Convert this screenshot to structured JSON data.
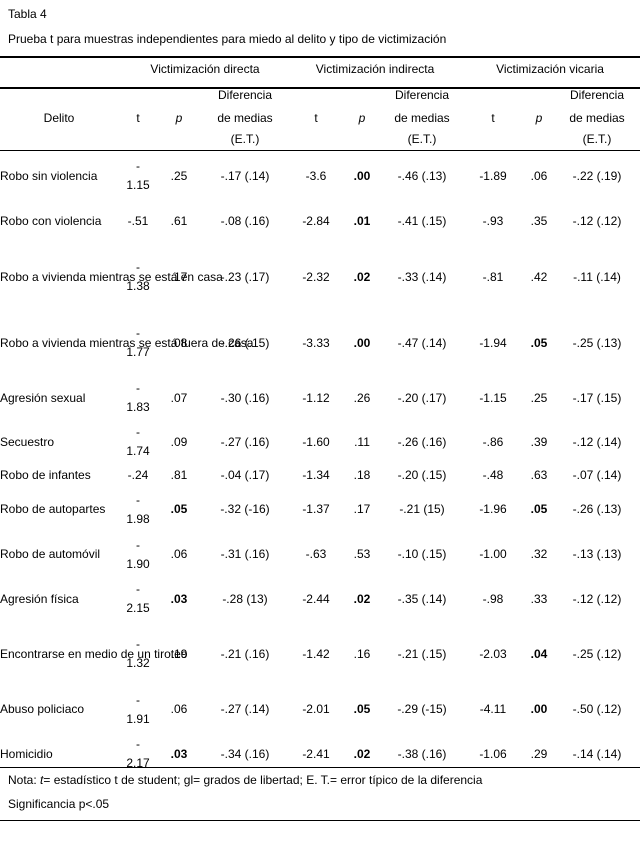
{
  "caption": {
    "table_number": "Tabla 4",
    "title": "Prueba t para muestras independientes para miedo al delito y tipo de victimización"
  },
  "header": {
    "groups": [
      "Victimización directa",
      "Victimización indirecta",
      "Victimización vicaria"
    ],
    "delito": "Delito",
    "t": "t",
    "p": "p",
    "diff_l1": "Diferencia",
    "diff_l2": "de medias",
    "diff_l3": "(E.T.)"
  },
  "rows": [
    {
      "delito": "Robo sin violencia",
      "d_t1": "-",
      "d_t2": "1.15",
      "d_p": ".25",
      "d_p_bold": false,
      "d_diff": "-.17 (.14)",
      "i_t": "-3.6",
      "i_p": ".00",
      "i_p_bold": true,
      "i_diff": "-.46 (.13)",
      "v_t": "-1.89",
      "v_p": ".06",
      "v_p_bold": false,
      "v_diff": "-.22 (.19)"
    },
    {
      "delito": "Robo con violencia",
      "d_t1": "-.51",
      "d_t2": "",
      "d_p": ".61",
      "d_p_bold": false,
      "d_diff": "-.08 (.16)",
      "i_t": "-2.84",
      "i_p": ".01",
      "i_p_bold": true,
      "i_diff": "-.41 (.15)",
      "v_t": "-.93",
      "v_p": ".35",
      "v_p_bold": false,
      "v_diff": "-.12 (.12)"
    },
    {
      "delito": "Robo a vivienda mientras se está en casa",
      "d_t1": "-",
      "d_t2": "1.38",
      "d_p": ".17",
      "d_p_bold": false,
      "d_diff": "-.23 (.17)",
      "i_t": "-2.32",
      "i_p": ".02",
      "i_p_bold": true,
      "i_diff": "-.33 (.14)",
      "v_t": "-.81",
      "v_p": ".42",
      "v_p_bold": false,
      "v_diff": "-.11 (.14)"
    },
    {
      "delito": "Robo a vivienda mientras se está fuera de casa",
      "d_t1": "-",
      "d_t2": "1.77",
      "d_p": ".08",
      "d_p_bold": false,
      "d_diff": "-.26 (.15)",
      "i_t": "-3.33",
      "i_p": ".00",
      "i_p_bold": true,
      "i_diff": "-.47 (.14)",
      "v_t": "-1.94",
      "v_p": ".05",
      "v_p_bold": true,
      "v_diff": "-.25 (.13)"
    },
    {
      "delito": "Agresión sexual",
      "d_t1": "-",
      "d_t2": "1.83",
      "d_p": ".07",
      "d_p_bold": false,
      "d_diff": "-.30 (.16)",
      "i_t": "-1.12",
      "i_p": ".26",
      "i_p_bold": false,
      "i_diff": "-.20 (.17)",
      "v_t": "-1.15",
      "v_p": ".25",
      "v_p_bold": false,
      "v_diff": "-.17 (.15)"
    },
    {
      "delito": "Secuestro",
      "d_t1": "-",
      "d_t2": "1.74",
      "d_p": ".09",
      "d_p_bold": false,
      "d_diff": "-.27 (.16)",
      "i_t": "-1.60",
      "i_p": ".11",
      "i_p_bold": false,
      "i_diff": "-.26 (.16)",
      "v_t": "-.86",
      "v_p": ".39",
      "v_p_bold": false,
      "v_diff": "-.12 (.14)"
    },
    {
      "delito": "Robo de infantes",
      "d_t1": "-.24",
      "d_t2": "",
      "d_p": ".81",
      "d_p_bold": false,
      "d_diff": "-.04 (.17)",
      "i_t": "-1.34",
      "i_p": ".18",
      "i_p_bold": false,
      "i_diff": "-.20 (.15)",
      "v_t": "-.48",
      "v_p": ".63",
      "v_p_bold": false,
      "v_diff": "-.07 (.14)"
    },
    {
      "delito": "Robo de autopartes",
      "d_t1": "-",
      "d_t2": "1.98",
      "d_p": ".05",
      "d_p_bold": true,
      "d_diff": "-.32 (-16)",
      "i_t": "-1.37",
      "i_p": ".17",
      "i_p_bold": false,
      "i_diff": "-.21 (15)",
      "v_t": "-1.96",
      "v_p": ".05",
      "v_p_bold": true,
      "v_diff": "-.26 (.13)"
    },
    {
      "delito": "Robo de automóvil",
      "d_t1": "-",
      "d_t2": "1.90",
      "d_p": ".06",
      "d_p_bold": false,
      "d_diff": "-.31 (.16)",
      "i_t": "-.63",
      "i_p": ".53",
      "i_p_bold": false,
      "i_diff": "-.10 (.15)",
      "v_t": "-1.00",
      "v_p": ".32",
      "v_p_bold": false,
      "v_diff": "-.13 (.13)"
    },
    {
      "delito": "Agresión física",
      "d_t1": "-",
      "d_t2": "2.15",
      "d_p": ".03",
      "d_p_bold": true,
      "d_diff": "-.28 (13)",
      "i_t": "-2.44",
      "i_p": ".02",
      "i_p_bold": true,
      "i_diff": "-.35 (.14)",
      "v_t": "-.98",
      "v_p": ".33",
      "v_p_bold": false,
      "v_diff": "-.12 (.12)"
    },
    {
      "delito": "Encontrarse en medio de un tiroteo",
      "d_t1": "-",
      "d_t2": "1.32",
      "d_p": ".19",
      "d_p_bold": false,
      "d_diff": "-.21 (.16)",
      "i_t": "-1.42",
      "i_p": ".16",
      "i_p_bold": false,
      "i_diff": "-.21 (.15)",
      "v_t": "-2.03",
      "v_p": ".04",
      "v_p_bold": true,
      "v_diff": "-.25 (.12)"
    },
    {
      "delito": "Abuso policiaco",
      "d_t1": "-",
      "d_t2": "1.91",
      "d_p": ".06",
      "d_p_bold": false,
      "d_diff": "-.27 (.14)",
      "i_t": "-2.01",
      "i_p": ".05",
      "i_p_bold": true,
      "i_diff": "-.29 (-15)",
      "v_t": "-4.11",
      "v_p": ".00",
      "v_p_bold": true,
      "v_diff": "-.50 (.12)"
    },
    {
      "delito": "Homicidio",
      "d_t1": "-",
      "d_t2": "2.17",
      "d_p": ".03",
      "d_p_bold": true,
      "d_diff": "-.34 (.16)",
      "i_t": "-2.41",
      "i_p": ".02",
      "i_p_bold": true,
      "i_diff": "-.38 (.16)",
      "v_t": "-1.06",
      "v_p": ".29",
      "v_p_bold": false,
      "v_diff": "-.14 (.14)"
    }
  ],
  "notes": {
    "nota_prefix": "Nota: ",
    "nota_t": "t",
    "nota_rest": "= estadístico t de student; gl= grados de libertad; E. T.= error típico de la diferencia",
    "significancia": "Significancia p<.05"
  }
}
